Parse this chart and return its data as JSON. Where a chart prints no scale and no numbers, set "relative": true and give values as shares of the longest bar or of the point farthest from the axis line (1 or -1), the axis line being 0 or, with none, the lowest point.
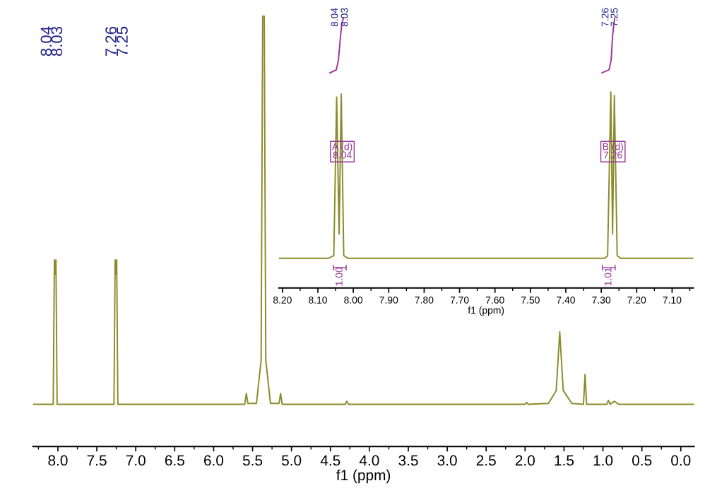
{
  "chart_data": [
    {
      "type": "line",
      "relative": true,
      "xlabel": "f1 (ppm)",
      "tick_labels": "x",
      "grid": false,
      "marker": "none",
      "line_style": "solid",
      "xlim": [
        8.32,
        -0.17
      ],
      "xticks": [
        {
          "value": 8,
          "label": "8.0"
        },
        {
          "value": 7.5,
          "label": "7.5"
        },
        {
          "value": 7,
          "label": "7.0"
        },
        {
          "value": 6.5,
          "label": "6.5"
        },
        {
          "value": 6,
          "label": "6.0"
        },
        {
          "value": 5.5,
          "label": "5.5"
        },
        {
          "value": 5,
          "label": "5.0"
        },
        {
          "value": 4.5,
          "label": "4.5"
        },
        {
          "value": 4,
          "label": "4.0"
        },
        {
          "value": 3.5,
          "label": "3.5"
        },
        {
          "value": 3,
          "label": "3.0"
        },
        {
          "value": 2.5,
          "label": "2.5"
        },
        {
          "value": 2,
          "label": "2.0"
        },
        {
          "value": 1.5,
          "label": "1.5"
        },
        {
          "value": 1,
          "label": "1.0"
        },
        {
          "value": 0.5,
          "label": "0.5"
        },
        {
          "value": 0,
          "label": "0.0"
        }
      ],
      "series": [
        {
          "color": "#8a8a2a",
          "x": [
            8.32,
            8.06,
            8.045,
            8.035,
            8.025,
            8.01,
            7.28,
            7.265,
            7.255,
            7.245,
            7.23,
            5.6,
            5.58,
            5.56,
            5.45,
            5.39,
            5.37,
            5.35,
            5.33,
            5.27,
            5.16,
            5.14,
            5.12,
            4.31,
            4.29,
            4.27,
            2.0,
            1.98,
            1.96,
            1.7,
            1.6,
            1.555,
            1.51,
            1.4,
            1.25,
            1.23,
            1.21,
            0.95,
            0.93,
            0.91,
            0.85,
            0.8,
            -0.17
          ],
          "values": [
            0.098,
            0.098,
            0.433,
            0.4,
            0.433,
            0.098,
            0.098,
            0.433,
            0.4,
            0.433,
            0.098,
            0.098,
            0.123,
            0.1,
            0.1,
            0.2,
            1.0,
            1.0,
            0.2,
            0.1,
            0.1,
            0.123,
            0.098,
            0.098,
            0.105,
            0.098,
            0.098,
            0.102,
            0.098,
            0.1,
            0.13,
            0.266,
            0.13,
            0.1,
            0.098,
            0.167,
            0.098,
            0.098,
            0.107,
            0.098,
            0.105,
            0.098,
            0.098
          ]
        }
      ],
      "annotations": [
        "8.04",
        "8.03",
        "7.26",
        "7.25"
      ]
    },
    {
      "type": "line",
      "relative": true,
      "xlabel": "f1 (ppm)",
      "tick_labels": "x",
      "grid": false,
      "marker": "none",
      "line_style": "solid",
      "xlim": [
        8.21,
        7.04
      ],
      "xticks": [
        {
          "value": 8.2,
          "label": "8.20"
        },
        {
          "value": 8.1,
          "label": "8.10"
        },
        {
          "value": 8.0,
          "label": "8.00"
        },
        {
          "value": 7.9,
          "label": "7.90"
        },
        {
          "value": 7.8,
          "label": "7.80"
        },
        {
          "value": 7.7,
          "label": "7.70"
        },
        {
          "value": 7.6,
          "label": "7.60"
        },
        {
          "value": 7.5,
          "label": "7.50"
        },
        {
          "value": 7.4,
          "label": "7.40"
        },
        {
          "value": 7.3,
          "label": "7.30"
        },
        {
          "value": 7.2,
          "label": "7.20"
        },
        {
          "value": 7.1,
          "label": "7.10"
        }
      ],
      "series": [
        {
          "color": "#8a8a2a",
          "x": [
            8.21,
            8.07,
            8.055,
            8.047,
            8.04,
            8.034,
            8.027,
            8.015,
            7.29,
            7.282,
            7.273,
            7.268,
            7.263,
            7.255,
            7.245,
            7.04
          ],
          "values": [
            0.11,
            0.11,
            0.12,
            0.707,
            0.2,
            0.718,
            0.12,
            0.11,
            0.11,
            0.12,
            0.726,
            0.2,
            0.712,
            0.12,
            0.11,
            0.11
          ]
        },
        {
          "color": "#a0309f",
          "x": [
            8.066,
            8.048,
            8.042,
            8.036,
            8.032,
            8.028
          ],
          "values": [
            0.797,
            0.808,
            0.844,
            0.934,
            0.981,
            1.0
          ]
        },
        {
          "color": "#a0309f",
          "x": [
            7.298,
            7.278,
            7.272,
            7.268,
            7.264,
            7.262
          ],
          "values": [
            0.797,
            0.808,
            0.844,
            0.934,
            0.981,
            1.0
          ]
        }
      ],
      "annotations": [
        "8.04",
        "8.03",
        "7.26",
        "7.25",
        "A (d)\n8.04",
        "B (d)\n7.26",
        "1.00",
        "1.01"
      ]
    }
  ]
}
